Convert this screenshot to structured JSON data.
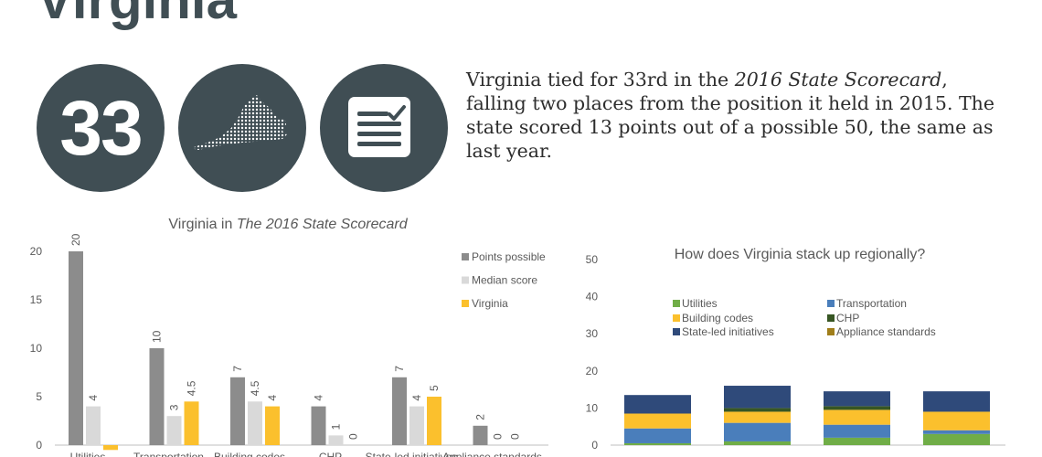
{
  "state_name": "Virginia",
  "rank": "33",
  "summary": {
    "pre": "Virginia tied for 33rd in the ",
    "emph": "2016 State Scorecard",
    "post": ", falling two places from the position it held in 2015. The state scored 13 points out of a possible 50, the same as last year."
  },
  "badges": {
    "map_icon": "virginia-map-icon",
    "scorecard_icon": "checklist-icon",
    "color": "#404e54"
  },
  "chart_data": [
    {
      "type": "bar",
      "title_pre": "Virginia in ",
      "title_emph": "The 2016 State Scorecard",
      "categories": [
        "Utilities",
        "Transportation",
        "Building codes",
        "CHP",
        "State-led initiatives",
        "Appliance standards"
      ],
      "series": [
        {
          "name": "Points possible",
          "color": "#8c8c8c",
          "values": [
            20,
            10,
            7,
            4,
            7,
            2
          ]
        },
        {
          "name": "Median score",
          "color": "#d9d9d9",
          "values": [
            4,
            3,
            4.5,
            1,
            4,
            0
          ]
        },
        {
          "name": "Virginia",
          "color": "#fbc02d",
          "values": [
            -0.5,
            4.5,
            4,
            0,
            5,
            0
          ]
        }
      ],
      "data_labels": [
        [
          "20",
          "10",
          "7",
          "4",
          "7",
          "2"
        ],
        [
          "4",
          "3",
          "4.5",
          "1",
          "4",
          "0"
        ],
        [
          "",
          "4.5",
          "4",
          "0",
          "5",
          "0"
        ]
      ],
      "yticks": [
        "0",
        "5",
        "10",
        "15",
        "20"
      ],
      "ylim": [
        -0.5,
        20
      ],
      "legend_position": "right"
    },
    {
      "type": "bar",
      "stacked": true,
      "title": "How does Virginia stack up regionally?",
      "stack_totals": [
        13.5,
        16,
        14.5,
        14.5
      ],
      "series": [
        {
          "name": "Utilities",
          "color": "#70ad47",
          "values": [
            0.5,
            1,
            2,
            3
          ]
        },
        {
          "name": "Transportation",
          "color": "#4a7ebb",
          "values": [
            4,
            5,
            3.5,
            1
          ]
        },
        {
          "name": "Building codes",
          "color": "#fbc02d",
          "values": [
            4,
            3,
            4,
            5
          ]
        },
        {
          "name": "CHP",
          "color": "#375623",
          "values": [
            0,
            1,
            1,
            0
          ]
        },
        {
          "name": "State-led initiatives",
          "color": "#2f4a7a",
          "values": [
            5,
            6,
            4,
            5.5
          ]
        },
        {
          "name": "Appliance standards",
          "color": "#a07e1a",
          "values": [
            0,
            0,
            0,
            0
          ]
        }
      ],
      "yticks": [
        "0",
        "10",
        "20",
        "30",
        "40",
        "50"
      ],
      "ylim": [
        0,
        50
      ],
      "legend_position": "top"
    }
  ]
}
